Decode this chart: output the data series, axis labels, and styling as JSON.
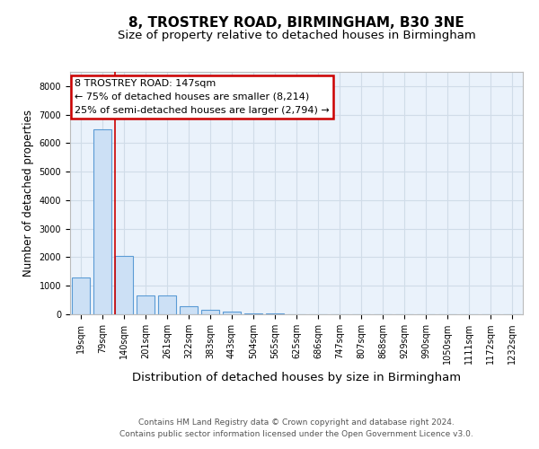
{
  "title": "8, TROSTREY ROAD, BIRMINGHAM, B30 3NE",
  "subtitle": "Size of property relative to detached houses in Birmingham",
  "xlabel": "Distribution of detached houses by size in Birmingham",
  "ylabel": "Number of detached properties",
  "bar_labels": [
    "19sqm",
    "79sqm",
    "140sqm",
    "201sqm",
    "261sqm",
    "322sqm",
    "383sqm",
    "443sqm",
    "504sqm",
    "565sqm",
    "625sqm",
    "686sqm",
    "747sqm",
    "807sqm",
    "868sqm",
    "929sqm",
    "990sqm",
    "1050sqm",
    "1111sqm",
    "1172sqm",
    "1232sqm"
  ],
  "bar_heights": [
    1300,
    6500,
    2050,
    650,
    650,
    280,
    150,
    90,
    45,
    45,
    0,
    0,
    0,
    0,
    0,
    0,
    0,
    0,
    0,
    0,
    0
  ],
  "bar_color": "#cce0f5",
  "bar_edge_color": "#5b9bd5",
  "red_line_index": 2,
  "annotation_line1": "8 TROSTREY ROAD: 147sqm",
  "annotation_line2": "← 75% of detached houses are smaller (8,214)",
  "annotation_line3": "25% of semi-detached houses are larger (2,794) →",
  "annotation_box_color": "#ffffff",
  "annotation_box_edge_color": "#cc0000",
  "ylim": [
    0,
    8500
  ],
  "yticks": [
    0,
    1000,
    2000,
    3000,
    4000,
    5000,
    6000,
    7000,
    8000
  ],
  "grid_color": "#d0dce8",
  "background_color": "#eaf2fb",
  "footer_line1": "Contains HM Land Registry data © Crown copyright and database right 2024.",
  "footer_line2": "Contains public sector information licensed under the Open Government Licence v3.0.",
  "title_fontsize": 11,
  "subtitle_fontsize": 9.5,
  "xlabel_fontsize": 9.5,
  "ylabel_fontsize": 8.5,
  "tick_fontsize": 7,
  "annotation_fontsize": 8,
  "footer_fontsize": 6.5
}
